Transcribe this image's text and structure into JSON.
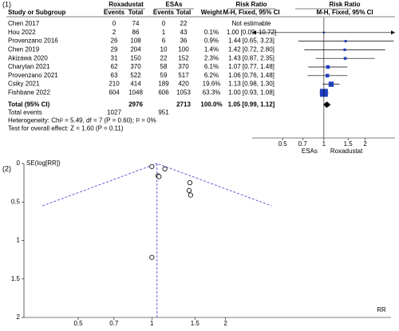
{
  "chart_data": [
    {
      "type": "forest",
      "panel_label": "(1)",
      "group_headers": [
        "Roxadustat",
        "ESAs",
        "Risk Ratio",
        "Risk Ratio"
      ],
      "columns": [
        "Study or Subgroup",
        "Events",
        "Total",
        "Events",
        "Total",
        "Weight",
        "M-H, Fixed, 95% CI",
        "M-H, Fixed, 95% CI"
      ],
      "studies": [
        {
          "name": "Chen 2017",
          "events_exp": 0,
          "total_exp": 74,
          "events_ctrl": 0,
          "total_ctrl": 22,
          "weight": null,
          "weight_label": null,
          "ci_label": "Not estimable",
          "rr": null,
          "lo": null,
          "hi": null
        },
        {
          "name": "Hou 2022",
          "events_exp": 2,
          "total_exp": 86,
          "events_ctrl": 1,
          "total_ctrl": 43,
          "weight": 0.1,
          "weight_label": "0.1%",
          "ci_label": "1.00 [0.09, 10.72]",
          "rr": 1.0,
          "lo": 0.09,
          "hi": 10.72
        },
        {
          "name": "Provenzano 2016",
          "events_exp": 26,
          "total_exp": 108,
          "events_ctrl": 6,
          "total_ctrl": 36,
          "weight": 0.9,
          "weight_label": "0.9%",
          "ci_label": "1.44 [0.65, 3.23]",
          "rr": 1.44,
          "lo": 0.65,
          "hi": 3.23
        },
        {
          "name": "Chen 2019",
          "events_exp": 29,
          "total_exp": 204,
          "events_ctrl": 10,
          "total_ctrl": 100,
          "weight": 1.4,
          "weight_label": "1.4%",
          "ci_label": "1.42 [0.72, 2.80]",
          "rr": 1.42,
          "lo": 0.72,
          "hi": 2.8
        },
        {
          "name": "Akizawa 2020",
          "events_exp": 31,
          "total_exp": 150,
          "events_ctrl": 22,
          "total_ctrl": 152,
          "weight": 2.3,
          "weight_label": "2.3%",
          "ci_label": "1.43 [0.87, 2.35]",
          "rr": 1.43,
          "lo": 0.87,
          "hi": 2.35
        },
        {
          "name": "Charytan 2021",
          "events_exp": 62,
          "total_exp": 370,
          "events_ctrl": 58,
          "total_ctrl": 370,
          "weight": 6.1,
          "weight_label": "6.1%",
          "ci_label": "1.07 [0.77, 1.48]",
          "rr": 1.07,
          "lo": 0.77,
          "hi": 1.48
        },
        {
          "name": "Provenzano 2021",
          "events_exp": 63,
          "total_exp": 522,
          "events_ctrl": 59,
          "total_ctrl": 517,
          "weight": 6.2,
          "weight_label": "6.2%",
          "ci_label": "1.06 [0.76, 1.48]",
          "rr": 1.06,
          "lo": 0.76,
          "hi": 1.48
        },
        {
          "name": "Csiky 2021",
          "events_exp": 210,
          "total_exp": 414,
          "events_ctrl": 189,
          "total_ctrl": 420,
          "weight": 19.6,
          "weight_label": "19.6%",
          "ci_label": "1.13 [0.98, 1.30]",
          "rr": 1.13,
          "lo": 0.98,
          "hi": 1.3
        },
        {
          "name": "Fishbane 2022",
          "events_exp": 604,
          "total_exp": 1048,
          "events_ctrl": 606,
          "total_ctrl": 1053,
          "weight": 63.3,
          "weight_label": "63.3%",
          "ci_label": "1.00 [0.93, 1.08]",
          "rr": 1.0,
          "lo": 0.93,
          "hi": 1.08
        }
      ],
      "total": {
        "label": "Total (95% CI)",
        "total_exp": 2976,
        "total_ctrl": 2713,
        "weight_label": "100.0%",
        "ci_label": "1.05 [0.99, 1.12]",
        "rr": 1.05,
        "lo": 0.99,
        "hi": 1.12
      },
      "total_events": {
        "label": "Total events",
        "exp": 1027,
        "ctrl": 951
      },
      "heterogeneity": "Heterogeneity: Chi² = 5.49, df = 7 (P = 0.60); I² = 0%",
      "overall_test": "Test for overall effect: Z = 1.60 (P = 0.11)",
      "xlim": [
        0.3,
        3.3
      ],
      "xticks": [
        0.5,
        0.7,
        1,
        1.5,
        2
      ],
      "xlog": true,
      "favours": [
        "ESAs",
        "Roxadustat"
      ],
      "color": "#1f3fbf"
    },
    {
      "type": "scatter",
      "panel_label": "(2)",
      "ylabel": "SE(log[RR])",
      "xlabel": "RR",
      "x": [
        1.0,
        1.13,
        1.06,
        1.07,
        1.43,
        1.42,
        1.44,
        1.0
      ],
      "values": [
        0.04,
        0.07,
        0.16,
        0.17,
        0.25,
        0.35,
        0.41,
        1.22
      ],
      "xlim": [
        0.3,
        9.5
      ],
      "xticks": [
        0.5,
        0.7,
        1,
        1.5,
        2
      ],
      "xlog": true,
      "ylim": [
        0,
        2
      ],
      "yticks": [
        0,
        0.5,
        1,
        1.5,
        2
      ],
      "y_inverted": true,
      "line_color": "#3a3ad0"
    }
  ]
}
